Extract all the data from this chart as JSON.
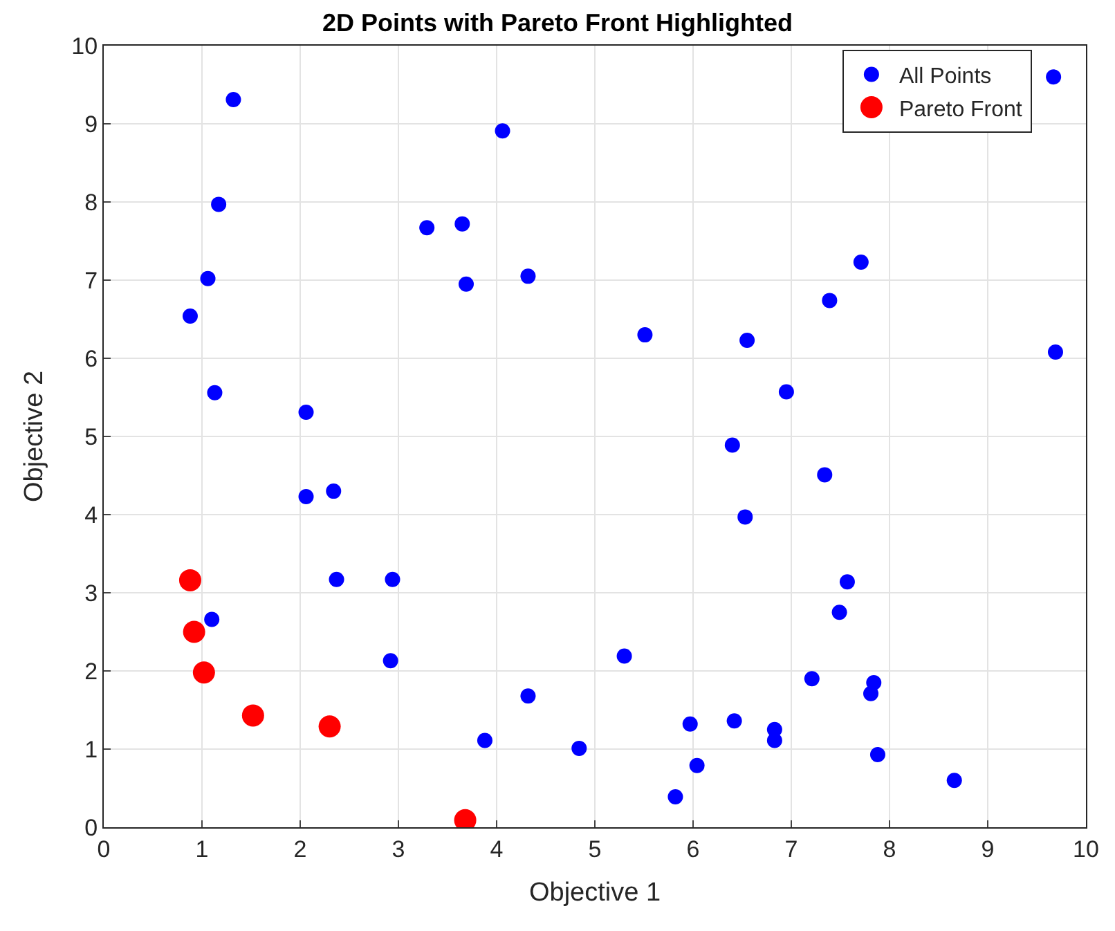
{
  "chart_data": {
    "type": "scatter",
    "title": "2D Points with Pareto Front Highlighted",
    "xlabel": "Objective 1",
    "ylabel": "Objective 2",
    "xlim": [
      0,
      10
    ],
    "ylim": [
      0,
      10
    ],
    "xticks": [
      0,
      1,
      2,
      3,
      4,
      5,
      6,
      7,
      8,
      9,
      10
    ],
    "yticks": [
      0,
      1,
      2,
      3,
      4,
      5,
      6,
      7,
      8,
      9,
      10
    ],
    "grid": true,
    "legend": "top right",
    "marker": "circle",
    "series": [
      {
        "name": "All Points",
        "color": "#0000ff",
        "x": [
          1.32,
          1.17,
          1.06,
          0.88,
          1.13,
          2.06,
          2.06,
          2.34,
          2.37,
          2.94,
          2.92,
          1.1,
          3.29,
          3.65,
          3.69,
          4.06,
          4.32,
          5.51,
          4.32,
          3.88,
          4.84,
          5.3,
          5.82,
          5.97,
          6.04,
          6.42,
          6.4,
          6.53,
          6.55,
          6.95,
          6.83,
          6.83,
          7.21,
          7.39,
          7.71,
          7.34,
          7.49,
          7.57,
          7.84,
          7.81,
          7.88,
          8.66,
          9.67,
          9.69
        ],
        "values": [
          9.31,
          7.97,
          7.02,
          6.54,
          5.56,
          5.31,
          4.23,
          4.3,
          3.17,
          3.17,
          2.13,
          2.66,
          7.67,
          7.72,
          6.95,
          8.91,
          7.05,
          6.3,
          1.68,
          1.11,
          1.01,
          2.19,
          0.39,
          1.32,
          0.79,
          1.36,
          4.89,
          3.97,
          6.23,
          5.57,
          1.25,
          1.11,
          1.9,
          6.74,
          7.23,
          4.51,
          2.75,
          3.14,
          1.85,
          1.71,
          0.93,
          0.6,
          9.6,
          6.08
        ]
      },
      {
        "name": "Pareto Front",
        "color": "#ff0000",
        "x": [
          0.88,
          0.92,
          1.02,
          1.52,
          2.3,
          3.68
        ],
        "values": [
          3.16,
          2.5,
          1.98,
          1.43,
          1.29,
          0.09
        ]
      }
    ]
  }
}
